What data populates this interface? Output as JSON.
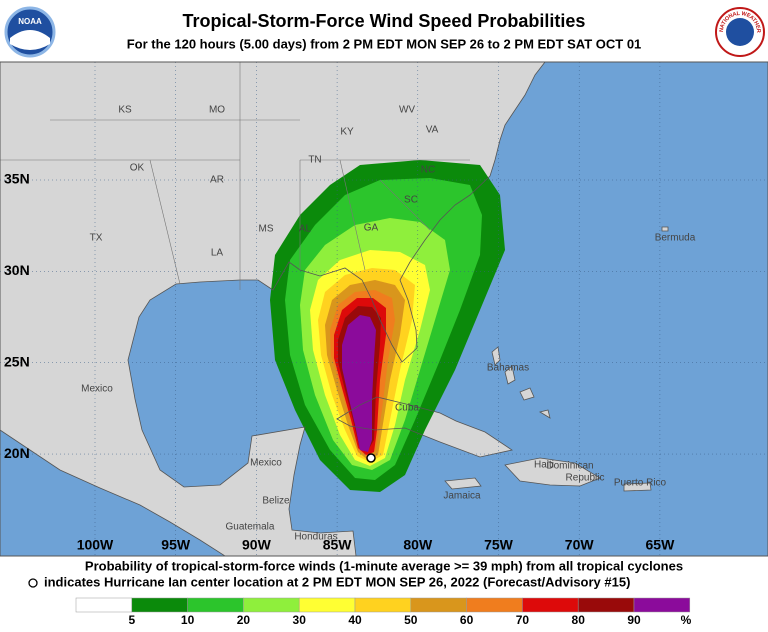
{
  "header": {
    "title": "Tropical-Storm-Force Wind Speed Probabilities",
    "subtitle": "For the 120 hours (5.00 days) from 2 PM EDT MON SEP 26 to 2 PM EDT SAT OCT 01",
    "logo_left": "NOAA",
    "logo_right": "NATIONAL WEATHER SERVICE"
  },
  "map": {
    "lat_ticks": [
      {
        "value": 35,
        "label": "35N"
      },
      {
        "value": 30,
        "label": "30N"
      },
      {
        "value": 25,
        "label": "25N"
      },
      {
        "value": 20,
        "label": "20N"
      }
    ],
    "lon_ticks": [
      {
        "value": 100,
        "label": "100W"
      },
      {
        "value": 95,
        "label": "95W"
      },
      {
        "value": 90,
        "label": "90W"
      },
      {
        "value": 85,
        "label": "85W"
      },
      {
        "value": 80,
        "label": "80W"
      },
      {
        "value": 75,
        "label": "75W"
      },
      {
        "value": 70,
        "label": "70W"
      },
      {
        "value": 65,
        "label": "65W"
      }
    ],
    "labels": [
      "KS",
      "MO",
      "KY",
      "WV",
      "VA",
      "TN",
      "NC",
      "OK",
      "AR",
      "SC",
      "GA",
      "AL",
      "MS",
      "LA",
      "TX",
      "Mexico",
      "Bahamas",
      "Cuba",
      "Haiti",
      "Dominican",
      "Republic",
      "Puerto Rico",
      "Jamaica",
      "Belize",
      "Guatemala",
      "Honduras",
      "Mexico",
      "Bermuda"
    ]
  },
  "caption": {
    "line1": "Probability of tropical-storm-force winds (1-minute average >= 39 mph) from all tropical cyclones",
    "line2": "indicates Hurricane Ian center location at 2 PM EDT MON SEP 26, 2022 (Forecast/Advisory #15)"
  },
  "legend": {
    "colors": [
      "#ffffff",
      "#0b8a0b",
      "#2cc52c",
      "#8fef3c",
      "#ffff33",
      "#ffd21f",
      "#d9961c",
      "#f07d1e",
      "#dd0a0a",
      "#990a0a",
      "#8b0b9b"
    ],
    "ticks": [
      5,
      10,
      20,
      30,
      40,
      50,
      60,
      70,
      80,
      90
    ],
    "unit": "%"
  }
}
